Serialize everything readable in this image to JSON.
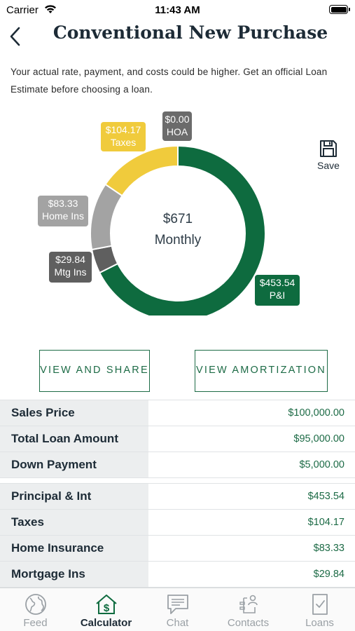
{
  "status_bar": {
    "carrier": "Carrier",
    "time": "11:43 AM"
  },
  "header": {
    "title": "Conventional New Purchase"
  },
  "disclaimer": "Your actual rate, payment, and costs could be higher. Get an official Loan Estimate before choosing a loan.",
  "chart_data": {
    "type": "pie",
    "style": "donut",
    "center": {
      "amount": "$671",
      "label": "Monthly"
    },
    "slices": [
      {
        "label": "P&I",
        "value": 453.54,
        "display": "$453.54",
        "color": "#0e6b3f"
      },
      {
        "label": "Mtg Ins",
        "value": 29.84,
        "display": "$29.84",
        "color": "#5f5f5f"
      },
      {
        "label": "Home Ins",
        "value": 83.33,
        "display": "$83.33",
        "color": "#a3a3a3"
      },
      {
        "label": "Taxes",
        "value": 104.17,
        "display": "$104.17",
        "color": "#f0cb3c"
      },
      {
        "label": "HOA",
        "value": 0.0,
        "display": "$0.00",
        "color": "#6b6b6b"
      }
    ]
  },
  "save": {
    "label": "Save",
    "icon": "floppy-disk-icon"
  },
  "buttons": {
    "view_share": "VIEW AND SHARE",
    "view_amortization": "VIEW AMORTIZATION"
  },
  "loan_table": [
    {
      "label": "Sales Price",
      "value": "$100,000.00"
    },
    {
      "label": "Total Loan Amount",
      "value": "$95,000.00"
    },
    {
      "label": "Down Payment",
      "value": "$5,000.00"
    }
  ],
  "payment_table": [
    {
      "label": "Principal & Int",
      "value": "$453.54"
    },
    {
      "label": "Taxes",
      "value": "$104.17"
    },
    {
      "label": "Home Insurance",
      "value": "$83.33"
    },
    {
      "label": "Mortgage Ins",
      "value": "$29.84"
    }
  ],
  "tabs": [
    {
      "label": "Feed",
      "icon": "globe-icon",
      "active": false
    },
    {
      "label": "Calculator",
      "icon": "calculator-house-icon",
      "active": true
    },
    {
      "label": "Chat",
      "icon": "chat-icon",
      "active": false
    },
    {
      "label": "Contacts",
      "icon": "contacts-icon",
      "active": false
    },
    {
      "label": "Loans",
      "icon": "loans-document-icon",
      "active": false
    }
  ],
  "colors": {
    "accent": "#1d6b46",
    "title": "#1d2b36",
    "row_bg": "#eceeef"
  }
}
